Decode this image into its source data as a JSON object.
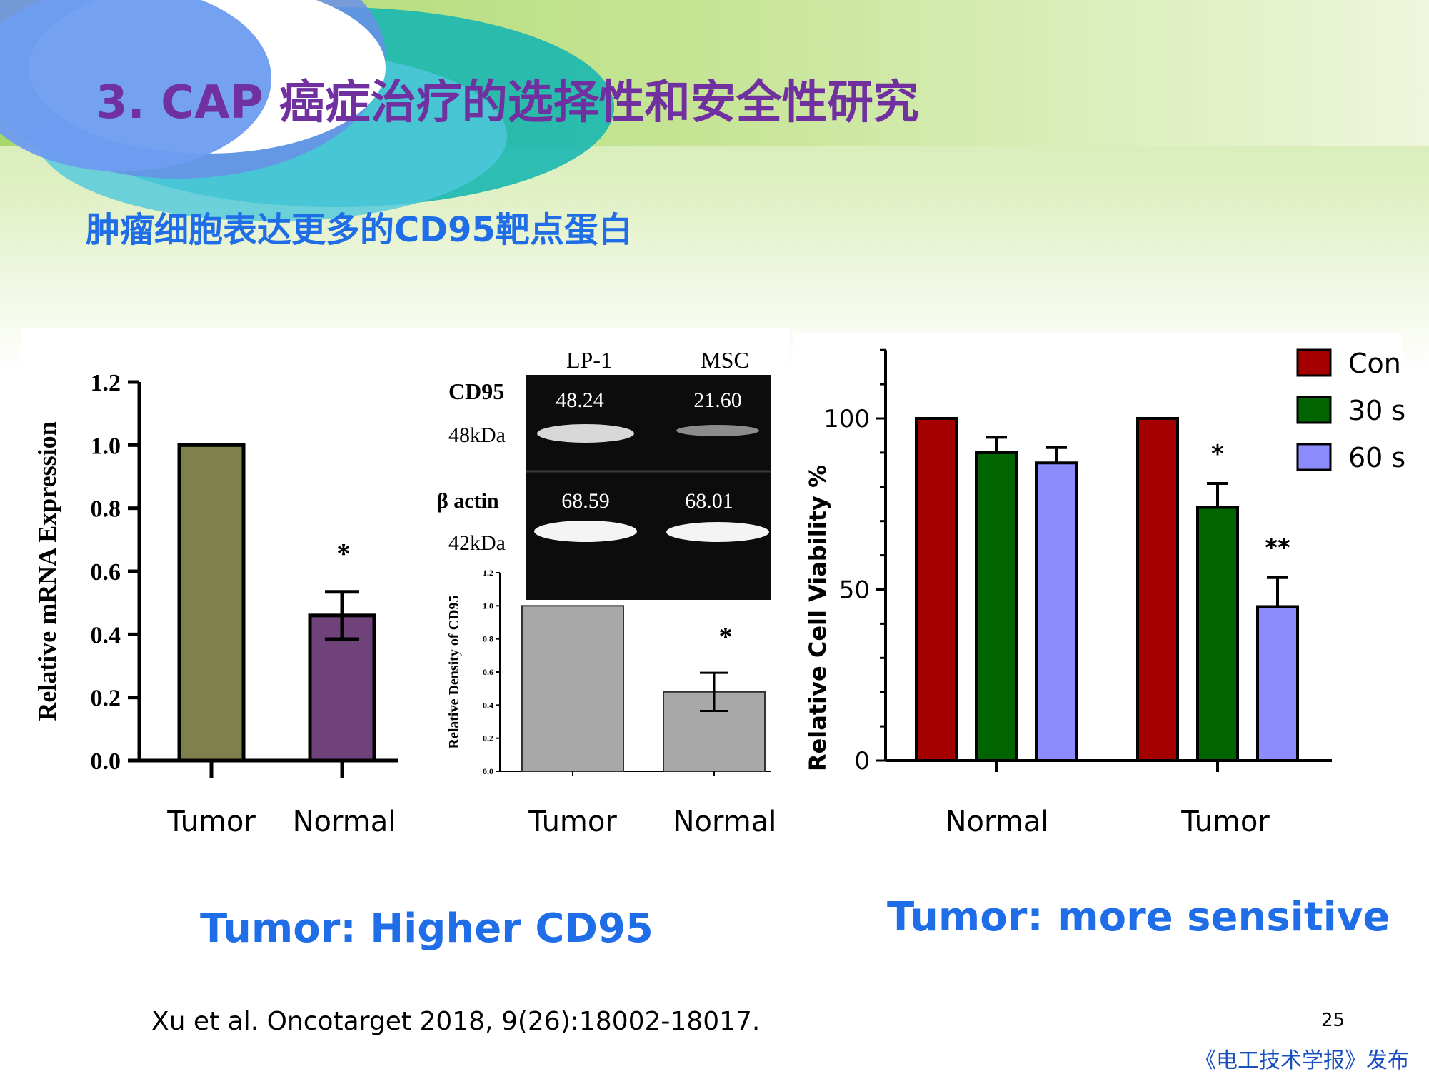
{
  "slide": {
    "title": "3. CAP 癌症治疗的选择性和安全性研究",
    "subtitle": "肿瘤细胞表达更多的CD95靶点蛋白",
    "conclusion_left": "Tumor: Higher CD95",
    "conclusion_right": "Tumor: more sensitive",
    "citation": "Xu et al. Oncotarget 2018, 9(26):18002-18017.",
    "page_number": "25",
    "publisher": "《电工技术学报》发布"
  },
  "blot": {
    "col_labels": [
      "LP-1",
      "MSC"
    ],
    "rows": [
      {
        "label": "CD95",
        "kda": "48kDa",
        "values": [
          "48.24",
          "21.60"
        ]
      },
      {
        "label": "β actin",
        "kda": "42kDa",
        "values": [
          "68.59",
          "68.01"
        ]
      }
    ]
  },
  "colors": {
    "title": "#7030a0",
    "subtitle": "#1f6ee8",
    "tumor_bar": "#80804c",
    "normal_bar": "#70427a",
    "density_bar": "#a8a8a8",
    "con": "#a50000",
    "s30": "#006400",
    "s60": "#8c8cff"
  },
  "chart_data": [
    {
      "type": "bar",
      "categories": [
        "Tumor",
        "Normal"
      ],
      "values": [
        1.0,
        0.46
      ],
      "errors": [
        0,
        0.075
      ],
      "significance": [
        "",
        "*"
      ],
      "ylabel": "Relative mRNA Expression",
      "ylim": [
        0,
        1.2
      ],
      "yticks": [
        "0.0",
        "0.2",
        "0.4",
        "0.6",
        "0.8",
        "1.0",
        "1.2"
      ],
      "grid": false
    },
    {
      "type": "bar",
      "categories": [
        "Tumor",
        "Normal"
      ],
      "values": [
        1.0,
        0.48
      ],
      "errors": [
        0,
        0.115
      ],
      "significance": [
        "",
        "*"
      ],
      "ylabel": "Relative Density of CD95",
      "ylim": [
        0,
        1.2
      ],
      "yticks": [
        "0.0",
        "0.2",
        "0.4",
        "0.6",
        "0.8",
        "1.0",
        "1.2"
      ],
      "grid": false
    },
    {
      "type": "bar",
      "categories": [
        "Normal",
        "Tumor"
      ],
      "series": [
        {
          "name": "Con",
          "values": [
            100,
            100
          ],
          "errors": [
            0,
            0
          ],
          "significance": [
            "",
            ""
          ]
        },
        {
          "name": "30 s",
          "values": [
            90,
            74
          ],
          "errors": [
            4.5,
            7
          ],
          "significance": [
            "",
            "*"
          ]
        },
        {
          "name": "60 s",
          "values": [
            87,
            45
          ],
          "errors": [
            4.5,
            8.5
          ],
          "significance": [
            "",
            "**"
          ]
        }
      ],
      "ylabel": "Relative Cell Viability %",
      "ylim": [
        0,
        120
      ],
      "yticks": [
        "0",
        "50",
        "100"
      ],
      "legend": "top-right",
      "grid": false
    }
  ]
}
